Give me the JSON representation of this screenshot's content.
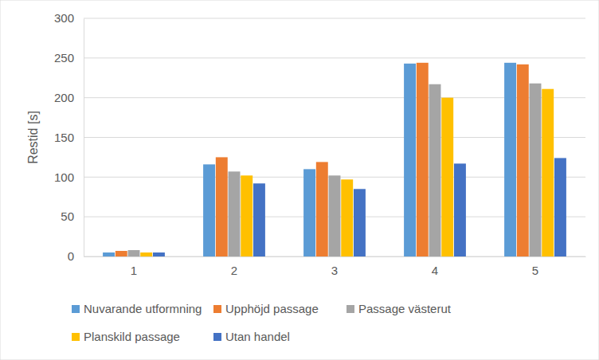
{
  "chart_data": {
    "type": "bar",
    "y_label": "Restid [s]",
    "categories": [
      "1",
      "2",
      "3",
      "4",
      "5"
    ],
    "series": [
      {
        "name": "Nuvarande utformning",
        "color": "#5b9bd5",
        "values": [
          5,
          116,
          110,
          243,
          244
        ]
      },
      {
        "name": "Upphöjd passage",
        "color": "#ed7d31",
        "values": [
          7,
          125,
          119,
          244,
          242
        ]
      },
      {
        "name": "Passage västerut",
        "color": "#a5a5a5",
        "values": [
          8,
          107,
          102,
          217,
          218
        ]
      },
      {
        "name": "Planskild passage",
        "color": "#ffc000",
        "values": [
          5,
          102,
          97,
          200,
          211
        ]
      },
      {
        "name": "Utan handel",
        "color": "#4472c4",
        "values": [
          5,
          92,
          85,
          117,
          124
        ]
      }
    ],
    "ylim": [
      0,
      300
    ],
    "yticks": [
      0,
      50,
      100,
      150,
      200,
      250,
      300
    ],
    "grid": true,
    "legend": "bottom"
  }
}
